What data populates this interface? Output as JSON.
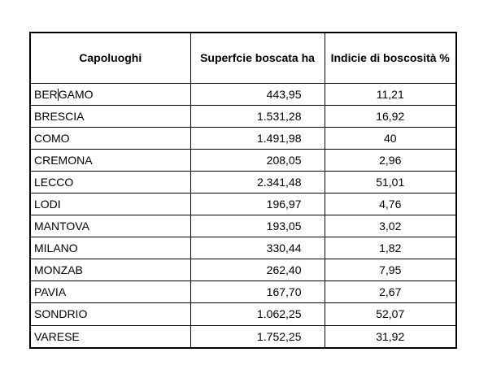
{
  "colors": {
    "page_background": "#ffffff",
    "table_border": "#000000",
    "text": "#000000"
  },
  "table": {
    "headers": [
      "Capoluoghi",
      "Superfcie boscata ha",
      "Indicie di boscosità %"
    ],
    "rows": [
      {
        "city_prefix": "BER",
        "city_suffix": "GAMO",
        "area": "443,95",
        "index": "11,21"
      },
      {
        "city": "BRESCIA",
        "area": "1.531,28",
        "index": "16,92"
      },
      {
        "city": "COMO",
        "area": "1.491,98",
        "index": "40"
      },
      {
        "city": "CREMONA",
        "area": "208,05",
        "index": "2,96"
      },
      {
        "city": "LECCO",
        "area": "2.341,48",
        "index": "51,01"
      },
      {
        "city": "LODI",
        "area": "196,97",
        "index": "4,76"
      },
      {
        "city": "MANTOVA",
        "area": "193,05",
        "index": "3,02"
      },
      {
        "city": "MILANO",
        "area": "330,44",
        "index": "1,82"
      },
      {
        "city": "MONZAB",
        "area": "262,40",
        "index": "7,95"
      },
      {
        "city": "PAVIA",
        "area": "167,70",
        "index": "2,67"
      },
      {
        "city": "SONDRIO",
        "area": "1.062,25",
        "index": "52,07"
      },
      {
        "city": "VARESE",
        "area": "1.752,25",
        "index": "31,92"
      }
    ]
  }
}
